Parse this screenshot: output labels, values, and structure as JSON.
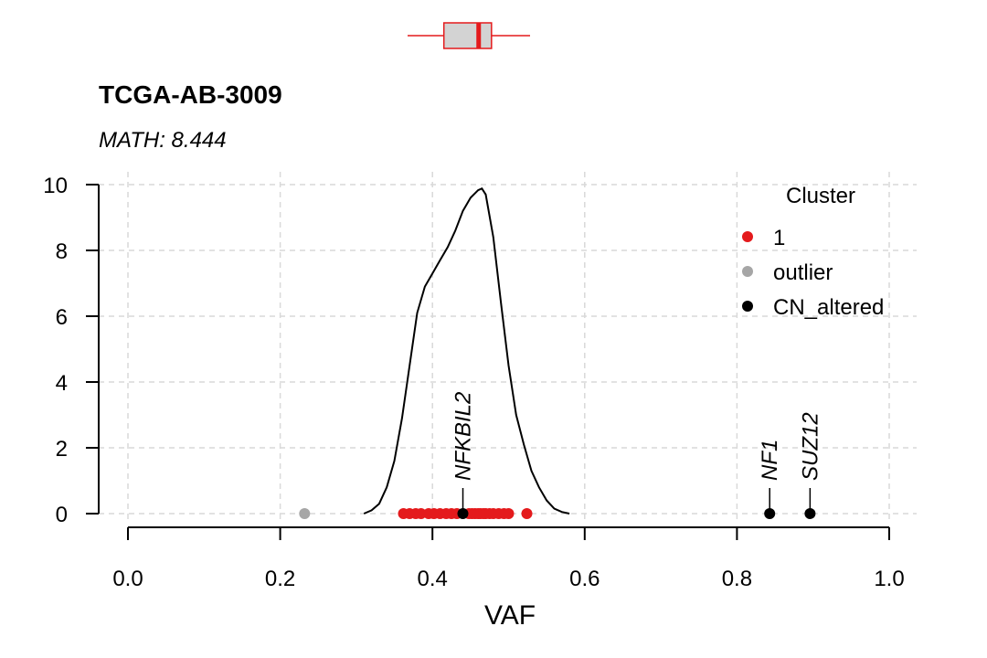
{
  "chart_data": {
    "type": "scatter",
    "title": "TCGA-AB-3009",
    "subtitle": "MATH: 8.444",
    "xlabel": "VAF",
    "ylabel": "",
    "xlim": [
      0.0,
      1.0
    ],
    "ylim": [
      0,
      10
    ],
    "grid": true,
    "x_ticks": [
      "0.0",
      "0.2",
      "0.4",
      "0.6",
      "0.8",
      "1.0"
    ],
    "y_ticks": [
      "0",
      "2",
      "4",
      "6",
      "8",
      "10"
    ],
    "legend": {
      "title": "Cluster",
      "position": "top-right",
      "entries": [
        {
          "label": "1",
          "color": "#e41a1c"
        },
        {
          "label": "outlier",
          "color": "#a6a6a6"
        },
        {
          "label": "CN_altered",
          "color": "#000000"
        }
      ]
    },
    "series": [
      {
        "name": "1",
        "color": "#e41a1c",
        "x": [
          0.362,
          0.37,
          0.378,
          0.385,
          0.395,
          0.402,
          0.41,
          0.418,
          0.425,
          0.432,
          0.448,
          0.452,
          0.456,
          0.46,
          0.463,
          0.467,
          0.47,
          0.475,
          0.48,
          0.487,
          0.494,
          0.5,
          0.524
        ],
        "y": [
          0,
          0,
          0,
          0,
          0,
          0,
          0,
          0,
          0,
          0,
          0,
          0,
          0,
          0,
          0,
          0,
          0,
          0,
          0,
          0,
          0,
          0,
          0
        ]
      },
      {
        "name": "outlier",
        "color": "#a6a6a6",
        "x": [
          0.232
        ],
        "y": [
          0
        ]
      },
      {
        "name": "CN_altered",
        "color": "#000000",
        "x": [
          0.44,
          0.843,
          0.896
        ],
        "y": [
          0,
          0,
          0
        ],
        "labels": [
          "NFKBIL2",
          "NF1",
          "SUZ12"
        ]
      }
    ],
    "density": {
      "name": "density",
      "color": "#000000",
      "x": [
        0.31,
        0.32,
        0.33,
        0.34,
        0.35,
        0.36,
        0.37,
        0.38,
        0.39,
        0.4,
        0.41,
        0.42,
        0.43,
        0.44,
        0.45,
        0.46,
        0.465,
        0.47,
        0.48,
        0.49,
        0.5,
        0.51,
        0.52,
        0.53,
        0.54,
        0.55,
        0.56,
        0.57,
        0.58
      ],
      "y": [
        0.0,
        0.1,
        0.3,
        0.8,
        1.6,
        2.9,
        4.5,
        6.1,
        6.9,
        7.3,
        7.7,
        8.1,
        8.6,
        9.2,
        9.6,
        9.83,
        9.88,
        9.7,
        8.4,
        6.4,
        4.5,
        3.0,
        2.1,
        1.3,
        0.8,
        0.4,
        0.15,
        0.05,
        0.0
      ]
    },
    "boxplot": {
      "color": "#e41a1c",
      "min": 0.362,
      "q1": 0.41,
      "median": 0.456,
      "q3": 0.473,
      "max": 0.524,
      "whisker_low": 0.362,
      "whisker_high": 0.524
    }
  }
}
